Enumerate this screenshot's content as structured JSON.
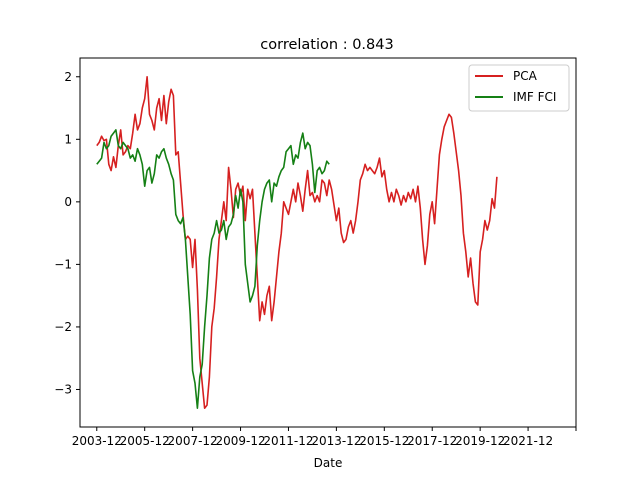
{
  "chart_data": {
    "type": "line",
    "title": "correlation : 0.843",
    "xlabel": "Date",
    "ylabel": "",
    "xlim": [
      2003.3,
      2024.0
    ],
    "ylim": [
      -3.6,
      2.3
    ],
    "x_ticks": [
      {
        "value": 2004.0,
        "label": "2003-12"
      },
      {
        "value": 2006.0,
        "label": "2005-12"
      },
      {
        "value": 2008.0,
        "label": "2007-12"
      },
      {
        "value": 2010.0,
        "label": "2009-12"
      },
      {
        "value": 2012.0,
        "label": "2011-12"
      },
      {
        "value": 2014.0,
        "label": "2013-12"
      },
      {
        "value": 2016.0,
        "label": "2015-12"
      },
      {
        "value": 2018.0,
        "label": "2017-12"
      },
      {
        "value": 2020.0,
        "label": "2019-12"
      },
      {
        "value": 2022.0,
        "label": "2021-12"
      },
      {
        "value": 2024.0,
        "label": ""
      }
    ],
    "y_ticks": [
      {
        "value": 2,
        "label": "2"
      },
      {
        "value": 1,
        "label": "1"
      },
      {
        "value": 0,
        "label": "0"
      },
      {
        "value": -1,
        "label": "−1"
      },
      {
        "value": -2,
        "label": "−2"
      },
      {
        "value": -3,
        "label": "−3"
      }
    ],
    "legend_position": "top-right",
    "grid": false,
    "series": [
      {
        "name": "PCA",
        "color": "#d62020",
        "points": [
          [
            2004.0,
            0.9
          ],
          [
            2004.1,
            0.95
          ],
          [
            2004.2,
            1.05
          ],
          [
            2004.3,
            0.98
          ],
          [
            2004.4,
            1.0
          ],
          [
            2004.5,
            0.6
          ],
          [
            2004.6,
            0.5
          ],
          [
            2004.7,
            0.72
          ],
          [
            2004.8,
            0.55
          ],
          [
            2004.9,
            0.9
          ],
          [
            2005.0,
            1.15
          ],
          [
            2005.1,
            0.75
          ],
          [
            2005.2,
            0.8
          ],
          [
            2005.3,
            0.9
          ],
          [
            2005.4,
            0.85
          ],
          [
            2005.5,
            1.1
          ],
          [
            2005.6,
            1.4
          ],
          [
            2005.7,
            1.15
          ],
          [
            2005.8,
            1.25
          ],
          [
            2005.9,
            1.5
          ],
          [
            2006.0,
            1.65
          ],
          [
            2006.1,
            2.0
          ],
          [
            2006.2,
            1.4
          ],
          [
            2006.3,
            1.3
          ],
          [
            2006.4,
            1.15
          ],
          [
            2006.5,
            1.5
          ],
          [
            2006.6,
            1.65
          ],
          [
            2006.7,
            1.3
          ],
          [
            2006.8,
            1.7
          ],
          [
            2006.9,
            1.25
          ],
          [
            2007.0,
            1.6
          ],
          [
            2007.1,
            1.8
          ],
          [
            2007.2,
            1.7
          ],
          [
            2007.3,
            0.75
          ],
          [
            2007.4,
            0.8
          ],
          [
            2007.5,
            0.3
          ],
          [
            2007.6,
            -0.2
          ],
          [
            2007.7,
            -0.6
          ],
          [
            2007.8,
            -0.55
          ],
          [
            2007.9,
            -0.6
          ],
          [
            2008.0,
            -1.05
          ],
          [
            2008.1,
            -0.6
          ],
          [
            2008.2,
            -1.4
          ],
          [
            2008.3,
            -2.5
          ],
          [
            2008.4,
            -2.9
          ],
          [
            2008.5,
            -3.3
          ],
          [
            2008.6,
            -3.25
          ],
          [
            2008.7,
            -2.8
          ],
          [
            2008.8,
            -2.0
          ],
          [
            2008.9,
            -1.7
          ],
          [
            2009.0,
            -1.2
          ],
          [
            2009.1,
            -0.6
          ],
          [
            2009.2,
            -0.3
          ],
          [
            2009.3,
            0.0
          ],
          [
            2009.4,
            -0.3
          ],
          [
            2009.5,
            0.55
          ],
          [
            2009.6,
            0.2
          ],
          [
            2009.7,
            -0.25
          ],
          [
            2009.8,
            0.2
          ],
          [
            2009.9,
            0.3
          ],
          [
            2010.0,
            0.1
          ],
          [
            2010.1,
            0.25
          ],
          [
            2010.2,
            -0.3
          ],
          [
            2010.3,
            0.2
          ],
          [
            2010.4,
            0.05
          ],
          [
            2010.5,
            0.2
          ],
          [
            2010.6,
            -0.5
          ],
          [
            2010.7,
            -1.2
          ],
          [
            2010.8,
            -1.9
          ],
          [
            2010.9,
            -1.6
          ],
          [
            2011.0,
            -1.8
          ],
          [
            2011.1,
            -1.5
          ],
          [
            2011.2,
            -1.35
          ],
          [
            2011.3,
            -1.9
          ],
          [
            2011.4,
            -1.6
          ],
          [
            2011.5,
            -1.2
          ],
          [
            2011.6,
            -0.8
          ],
          [
            2011.7,
            -0.5
          ],
          [
            2011.8,
            0.0
          ],
          [
            2011.9,
            -0.1
          ],
          [
            2012.0,
            -0.2
          ],
          [
            2012.1,
            0.0
          ],
          [
            2012.2,
            0.2
          ],
          [
            2012.3,
            0.0
          ],
          [
            2012.4,
            0.3
          ],
          [
            2012.5,
            0.1
          ],
          [
            2012.6,
            -0.15
          ],
          [
            2012.7,
            0.2
          ],
          [
            2012.8,
            0.5
          ],
          [
            2012.9,
            0.1
          ],
          [
            2013.0,
            0.15
          ],
          [
            2013.1,
            0.0
          ],
          [
            2013.2,
            0.1
          ],
          [
            2013.3,
            0.0
          ],
          [
            2013.4,
            0.35
          ],
          [
            2013.5,
            0.3
          ],
          [
            2013.6,
            0.1
          ],
          [
            2013.7,
            0.35
          ],
          [
            2013.8,
            0.2
          ],
          [
            2013.9,
            -0.05
          ],
          [
            2014.0,
            -0.3
          ],
          [
            2014.1,
            -0.1
          ],
          [
            2014.2,
            -0.5
          ],
          [
            2014.3,
            -0.65
          ],
          [
            2014.4,
            -0.6
          ],
          [
            2014.5,
            -0.4
          ],
          [
            2014.6,
            -0.3
          ],
          [
            2014.7,
            -0.5
          ],
          [
            2014.8,
            -0.3
          ],
          [
            2014.9,
            0.0
          ],
          [
            2015.0,
            0.35
          ],
          [
            2015.1,
            0.45
          ],
          [
            2015.2,
            0.6
          ],
          [
            2015.3,
            0.5
          ],
          [
            2015.4,
            0.55
          ],
          [
            2015.5,
            0.5
          ],
          [
            2015.6,
            0.45
          ],
          [
            2015.7,
            0.55
          ],
          [
            2015.8,
            0.7
          ],
          [
            2015.9,
            0.4
          ],
          [
            2016.0,
            0.5
          ],
          [
            2016.1,
            0.2
          ],
          [
            2016.2,
            0.0
          ],
          [
            2016.3,
            0.15
          ],
          [
            2016.4,
            0.0
          ],
          [
            2016.5,
            0.2
          ],
          [
            2016.6,
            0.1
          ],
          [
            2016.7,
            -0.05
          ],
          [
            2016.8,
            0.1
          ],
          [
            2016.9,
            0.0
          ],
          [
            2017.0,
            0.15
          ],
          [
            2017.1,
            0.05
          ],
          [
            2017.2,
            0.2
          ],
          [
            2017.3,
            0.0
          ],
          [
            2017.4,
            0.25
          ],
          [
            2017.5,
            -0.1
          ],
          [
            2017.6,
            -0.6
          ],
          [
            2017.7,
            -1.0
          ],
          [
            2017.8,
            -0.7
          ],
          [
            2017.9,
            -0.2
          ],
          [
            2018.0,
            0.0
          ],
          [
            2018.1,
            -0.35
          ],
          [
            2018.2,
            0.2
          ],
          [
            2018.3,
            0.75
          ],
          [
            2018.4,
            1.0
          ],
          [
            2018.5,
            1.2
          ],
          [
            2018.6,
            1.3
          ],
          [
            2018.7,
            1.4
          ],
          [
            2018.8,
            1.35
          ],
          [
            2018.9,
            1.1
          ],
          [
            2019.0,
            0.8
          ],
          [
            2019.1,
            0.5
          ],
          [
            2019.2,
            0.1
          ],
          [
            2019.3,
            -0.5
          ],
          [
            2019.4,
            -0.8
          ],
          [
            2019.5,
            -1.2
          ],
          [
            2019.6,
            -0.9
          ],
          [
            2019.7,
            -1.3
          ],
          [
            2019.8,
            -1.6
          ],
          [
            2019.9,
            -1.65
          ],
          [
            2020.0,
            -0.8
          ],
          [
            2020.1,
            -0.6
          ],
          [
            2020.2,
            -0.3
          ],
          [
            2020.3,
            -0.45
          ],
          [
            2020.4,
            -0.3
          ],
          [
            2020.5,
            0.05
          ],
          [
            2020.6,
            -0.1
          ],
          [
            2020.7,
            0.4
          ]
        ]
      },
      {
        "name": "IMF FCI",
        "color": "#158015",
        "points": [
          [
            2004.0,
            0.6
          ],
          [
            2004.1,
            0.65
          ],
          [
            2004.2,
            0.7
          ],
          [
            2004.3,
            0.95
          ],
          [
            2004.4,
            0.85
          ],
          [
            2004.5,
            0.9
          ],
          [
            2004.6,
            1.05
          ],
          [
            2004.7,
            1.1
          ],
          [
            2004.8,
            1.15
          ],
          [
            2004.9,
            0.9
          ],
          [
            2005.0,
            0.85
          ],
          [
            2005.1,
            0.95
          ],
          [
            2005.2,
            0.9
          ],
          [
            2005.3,
            0.85
          ],
          [
            2005.4,
            0.7
          ],
          [
            2005.5,
            0.75
          ],
          [
            2005.6,
            0.65
          ],
          [
            2005.7,
            0.85
          ],
          [
            2005.8,
            0.75
          ],
          [
            2005.9,
            0.6
          ],
          [
            2006.0,
            0.25
          ],
          [
            2006.1,
            0.5
          ],
          [
            2006.2,
            0.55
          ],
          [
            2006.3,
            0.3
          ],
          [
            2006.4,
            0.45
          ],
          [
            2006.5,
            0.75
          ],
          [
            2006.6,
            0.7
          ],
          [
            2006.7,
            0.8
          ],
          [
            2006.8,
            0.85
          ],
          [
            2006.9,
            0.7
          ],
          [
            2007.0,
            0.6
          ],
          [
            2007.1,
            0.45
          ],
          [
            2007.2,
            0.35
          ],
          [
            2007.3,
            -0.2
          ],
          [
            2007.4,
            -0.3
          ],
          [
            2007.5,
            -0.35
          ],
          [
            2007.6,
            -0.25
          ],
          [
            2007.7,
            -0.6
          ],
          [
            2007.8,
            -1.2
          ],
          [
            2007.9,
            -1.8
          ],
          [
            2008.0,
            -2.7
          ],
          [
            2008.1,
            -2.9
          ],
          [
            2008.2,
            -3.3
          ],
          [
            2008.3,
            -2.8
          ],
          [
            2008.4,
            -2.6
          ],
          [
            2008.5,
            -2.0
          ],
          [
            2008.6,
            -1.5
          ],
          [
            2008.7,
            -0.9
          ],
          [
            2008.8,
            -0.6
          ],
          [
            2008.9,
            -0.5
          ],
          [
            2009.0,
            -0.3
          ],
          [
            2009.1,
            -0.5
          ],
          [
            2009.2,
            -0.45
          ],
          [
            2009.3,
            -0.3
          ],
          [
            2009.4,
            -0.6
          ],
          [
            2009.5,
            -0.4
          ],
          [
            2009.6,
            -0.35
          ],
          [
            2009.7,
            -0.2
          ],
          [
            2009.8,
            0.1
          ],
          [
            2009.9,
            -0.1
          ],
          [
            2010.0,
            0.2
          ],
          [
            2010.1,
            0.0
          ],
          [
            2010.2,
            -1.0
          ],
          [
            2010.3,
            -1.3
          ],
          [
            2010.4,
            -1.6
          ],
          [
            2010.5,
            -1.5
          ],
          [
            2010.6,
            -1.35
          ],
          [
            2010.7,
            -0.7
          ],
          [
            2010.8,
            -0.3
          ],
          [
            2010.9,
            0.0
          ],
          [
            2011.0,
            0.2
          ],
          [
            2011.1,
            0.3
          ],
          [
            2011.2,
            0.35
          ],
          [
            2011.3,
            0.0
          ],
          [
            2011.4,
            0.3
          ],
          [
            2011.5,
            0.25
          ],
          [
            2011.6,
            0.4
          ],
          [
            2011.7,
            0.5
          ],
          [
            2011.8,
            0.55
          ],
          [
            2011.9,
            0.8
          ],
          [
            2012.0,
            0.85
          ],
          [
            2012.1,
            0.9
          ],
          [
            2012.2,
            0.6
          ],
          [
            2012.3,
            0.75
          ],
          [
            2012.4,
            0.7
          ],
          [
            2012.5,
            0.95
          ],
          [
            2012.6,
            1.1
          ],
          [
            2012.7,
            0.85
          ],
          [
            2012.8,
            0.95
          ],
          [
            2012.9,
            0.9
          ],
          [
            2013.0,
            0.6
          ],
          [
            2013.1,
            0.15
          ],
          [
            2013.2,
            0.5
          ],
          [
            2013.3,
            0.55
          ],
          [
            2013.4,
            0.45
          ],
          [
            2013.5,
            0.5
          ],
          [
            2013.6,
            0.65
          ],
          [
            2013.7,
            0.6
          ]
        ]
      }
    ]
  }
}
